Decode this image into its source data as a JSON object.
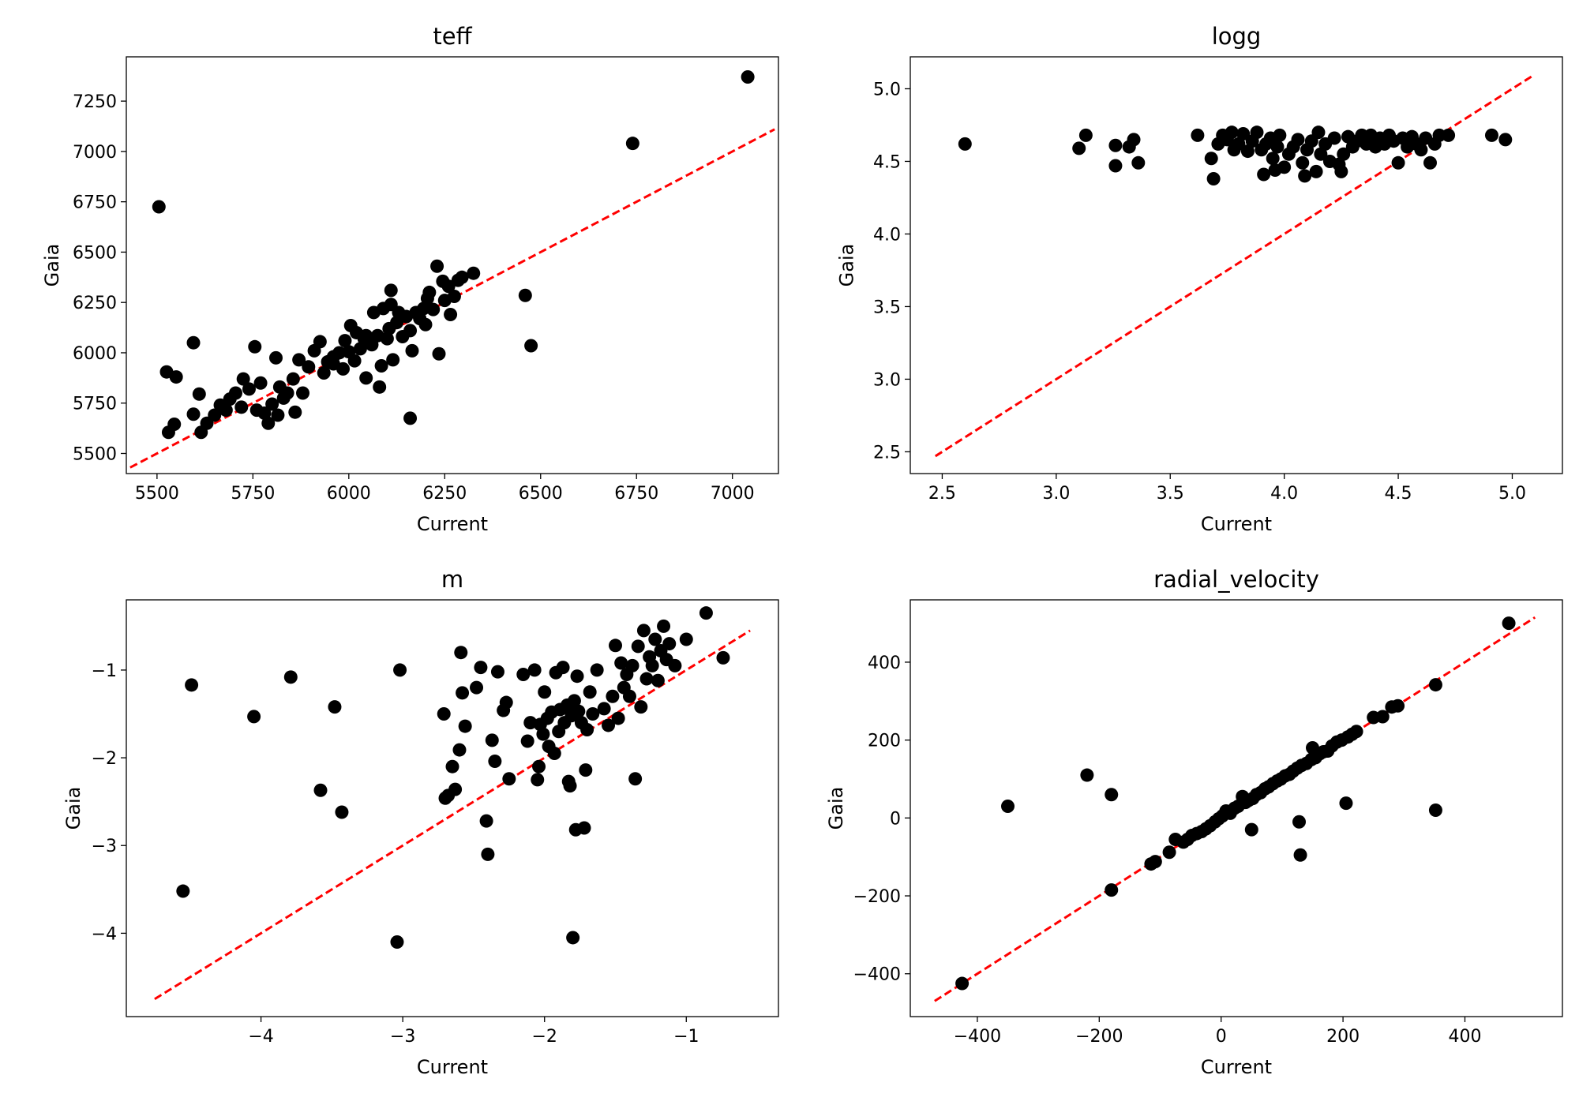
{
  "chart_data": [
    {
      "type": "scatter",
      "title": "teff",
      "xlabel": "Current",
      "ylabel": "Gaia",
      "xlim": [
        5420,
        7120
      ],
      "ylim": [
        5400,
        7470
      ],
      "xticks": [
        5500,
        5750,
        6000,
        6250,
        6500,
        6750,
        7000
      ],
      "yticks": [
        5500,
        5750,
        6000,
        6250,
        6500,
        6750,
        7000,
        7250
      ],
      "tick_labels_x": [
        "5500",
        "5750",
        "6000",
        "6250",
        "6500",
        "6750",
        "7000"
      ],
      "tick_labels_y": [
        "5500",
        "5750",
        "6000",
        "6250",
        "6500",
        "6750",
        "7000",
        "7250"
      ],
      "reference_line": {
        "style": "dashed",
        "color": "#ff0000",
        "from": [
          5430,
          5430
        ],
        "to": [
          7110,
          7110
        ]
      },
      "marker_color": "#000000",
      "grid": false,
      "points": [
        [
          7040,
          7370
        ],
        [
          6740,
          7040
        ],
        [
          5505,
          6725
        ],
        [
          6460,
          6285
        ],
        [
          6475,
          6035
        ],
        [
          6160,
          5675
        ],
        [
          5595,
          6050
        ],
        [
          5525,
          5905
        ],
        [
          5550,
          5880
        ],
        [
          5610,
          5795
        ],
        [
          5530,
          5605
        ],
        [
          5545,
          5645
        ],
        [
          5595,
          5695
        ],
        [
          5615,
          5605
        ],
        [
          5630,
          5650
        ],
        [
          5650,
          5690
        ],
        [
          5665,
          5740
        ],
        [
          5680,
          5715
        ],
        [
          5690,
          5770
        ],
        [
          5705,
          5800
        ],
        [
          5720,
          5730
        ],
        [
          5725,
          5870
        ],
        [
          5740,
          5820
        ],
        [
          5755,
          6030
        ],
        [
          5760,
          5715
        ],
        [
          5770,
          5850
        ],
        [
          5780,
          5700
        ],
        [
          5790,
          5650
        ],
        [
          5800,
          5745
        ],
        [
          5810,
          5975
        ],
        [
          5815,
          5690
        ],
        [
          5820,
          5830
        ],
        [
          5840,
          5800
        ],
        [
          5855,
          5870
        ],
        [
          5860,
          5705
        ],
        [
          5870,
          5965
        ],
        [
          5880,
          5800
        ],
        [
          5895,
          5930
        ],
        [
          5910,
          6010
        ],
        [
          5925,
          6055
        ],
        [
          5935,
          5900
        ],
        [
          5945,
          5955
        ],
        [
          5960,
          5980
        ],
        [
          5975,
          6000
        ],
        [
          5985,
          5920
        ],
        [
          5990,
          6060
        ],
        [
          6000,
          6005
        ],
        [
          6005,
          6135
        ],
        [
          6015,
          5960
        ],
        [
          6020,
          6100
        ],
        [
          6030,
          6020
        ],
        [
          6040,
          6070
        ],
        [
          6045,
          5875
        ],
        [
          6060,
          6040
        ],
        [
          6065,
          6200
        ],
        [
          6075,
          6085
        ],
        [
          6080,
          5830
        ],
        [
          6085,
          5935
        ],
        [
          6090,
          6220
        ],
        [
          6100,
          6070
        ],
        [
          6105,
          6120
        ],
        [
          6110,
          6240
        ],
        [
          6115,
          5965
        ],
        [
          6125,
          6150
        ],
        [
          6130,
          6200
        ],
        [
          6140,
          6080
        ],
        [
          6150,
          6180
        ],
        [
          6160,
          6110
        ],
        [
          6165,
          6010
        ],
        [
          6175,
          6200
        ],
        [
          6185,
          6170
        ],
        [
          6195,
          6220
        ],
        [
          6200,
          6140
        ],
        [
          6205,
          6270
        ],
        [
          6210,
          6300
        ],
        [
          6220,
          6215
        ],
        [
          6230,
          6430
        ],
        [
          6235,
          5995
        ],
        [
          6245,
          6355
        ],
        [
          6250,
          6260
        ],
        [
          6260,
          6330
        ],
        [
          6265,
          6190
        ],
        [
          6275,
          6280
        ],
        [
          6285,
          6360
        ],
        [
          6295,
          6375
        ],
        [
          6325,
          6395
        ],
        [
          6110,
          6310
        ],
        [
          6045,
          6085
        ],
        [
          5960,
          5945
        ],
        [
          5830,
          5775
        ]
      ]
    },
    {
      "type": "scatter",
      "title": "logg",
      "xlabel": "Current",
      "ylabel": "Gaia",
      "xlim": [
        2.36,
        5.22
      ],
      "ylim": [
        2.35,
        5.22
      ],
      "xticks": [
        2.5,
        3.0,
        3.5,
        4.0,
        4.5,
        5.0
      ],
      "yticks": [
        2.5,
        3.0,
        3.5,
        4.0,
        4.5,
        5.0
      ],
      "tick_labels_x": [
        "2.5",
        "3.0",
        "3.5",
        "4.0",
        "4.5",
        "5.0"
      ],
      "tick_labels_y": [
        "2.5",
        "3.0",
        "3.5",
        "4.0",
        "4.5",
        "5.0"
      ],
      "reference_line": {
        "style": "dashed",
        "color": "#ff0000",
        "from": [
          2.47,
          2.47
        ],
        "to": [
          5.09,
          5.09
        ]
      },
      "marker_color": "#000000",
      "grid": false,
      "points": [
        [
          2.6,
          4.62
        ],
        [
          3.1,
          4.59
        ],
        [
          3.13,
          4.68
        ],
        [
          3.26,
          4.61
        ],
        [
          3.26,
          4.47
        ],
        [
          3.32,
          4.6
        ],
        [
          3.34,
          4.65
        ],
        [
          3.36,
          4.49
        ],
        [
          3.62,
          4.68
        ],
        [
          3.68,
          4.52
        ],
        [
          3.69,
          4.38
        ],
        [
          3.71,
          4.62
        ],
        [
          3.73,
          4.68
        ],
        [
          3.75,
          4.65
        ],
        [
          3.77,
          4.7
        ],
        [
          3.78,
          4.58
        ],
        [
          3.8,
          4.62
        ],
        [
          3.82,
          4.69
        ],
        [
          3.84,
          4.57
        ],
        [
          3.86,
          4.64
        ],
        [
          3.88,
          4.7
        ],
        [
          3.9,
          4.58
        ],
        [
          3.91,
          4.41
        ],
        [
          3.92,
          4.62
        ],
        [
          3.94,
          4.66
        ],
        [
          3.95,
          4.52
        ],
        [
          3.96,
          4.44
        ],
        [
          3.97,
          4.6
        ],
        [
          3.98,
          4.68
        ],
        [
          4.0,
          4.46
        ],
        [
          4.02,
          4.55
        ],
        [
          4.04,
          4.6
        ],
        [
          4.06,
          4.65
        ],
        [
          4.08,
          4.49
        ],
        [
          4.09,
          4.4
        ],
        [
          4.1,
          4.58
        ],
        [
          4.12,
          4.64
        ],
        [
          4.14,
          4.43
        ],
        [
          4.15,
          4.7
        ],
        [
          4.16,
          4.55
        ],
        [
          4.18,
          4.62
        ],
        [
          4.2,
          4.5
        ],
        [
          4.22,
          4.66
        ],
        [
          4.24,
          4.48
        ],
        [
          4.25,
          4.43
        ],
        [
          4.26,
          4.55
        ],
        [
          4.28,
          4.67
        ],
        [
          4.3,
          4.6
        ],
        [
          4.32,
          4.64
        ],
        [
          4.34,
          4.68
        ],
        [
          4.36,
          4.62
        ],
        [
          4.38,
          4.68
        ],
        [
          4.4,
          4.6
        ],
        [
          4.42,
          4.66
        ],
        [
          4.44,
          4.62
        ],
        [
          4.46,
          4.68
        ],
        [
          4.48,
          4.64
        ],
        [
          4.5,
          4.49
        ],
        [
          4.52,
          4.66
        ],
        [
          4.54,
          4.6
        ],
        [
          4.56,
          4.67
        ],
        [
          4.58,
          4.62
        ],
        [
          4.6,
          4.58
        ],
        [
          4.62,
          4.66
        ],
        [
          4.64,
          4.49
        ],
        [
          4.66,
          4.62
        ],
        [
          4.68,
          4.68
        ],
        [
          4.72,
          4.68
        ],
        [
          4.91,
          4.68
        ],
        [
          4.97,
          4.65
        ]
      ]
    },
    {
      "type": "scatter",
      "title": "m",
      "xlabel": "Current",
      "ylabel": "Gaia",
      "xlim": [
        -4.95,
        -0.35
      ],
      "ylim": [
        -4.95,
        -0.2
      ],
      "xticks": [
        -4,
        -3,
        -2,
        -1
      ],
      "yticks": [
        -4,
        -3,
        -2,
        -1
      ],
      "tick_labels_x": [
        "−4",
        "−3",
        "−2",
        "−1"
      ],
      "tick_labels_y": [
        "−4",
        "−3",
        "−2",
        "−1"
      ],
      "reference_line": {
        "style": "dashed",
        "color": "#ff0000",
        "from": [
          -4.75,
          -4.75
        ],
        "to": [
          -0.55,
          -0.55
        ]
      },
      "marker_color": "#000000",
      "grid": false,
      "points": [
        [
          -4.55,
          -3.52
        ],
        [
          -4.49,
          -1.17
        ],
        [
          -4.05,
          -1.53
        ],
        [
          -3.79,
          -1.08
        ],
        [
          -3.58,
          -2.37
        ],
        [
          -3.48,
          -1.42
        ],
        [
          -3.43,
          -2.62
        ],
        [
          -3.04,
          -4.1
        ],
        [
          -3.02,
          -1.0
        ],
        [
          -2.71,
          -1.5
        ],
        [
          -2.7,
          -2.46
        ],
        [
          -2.68,
          -2.43
        ],
        [
          -2.65,
          -2.1
        ],
        [
          -2.63,
          -2.36
        ],
        [
          -2.6,
          -1.91
        ],
        [
          -2.59,
          -0.8
        ],
        [
          -2.58,
          -1.26
        ],
        [
          -2.56,
          -1.64
        ],
        [
          -2.48,
          -1.2
        ],
        [
          -2.45,
          -0.97
        ],
        [
          -2.41,
          -2.72
        ],
        [
          -2.4,
          -3.1
        ],
        [
          -2.37,
          -1.8
        ],
        [
          -2.35,
          -2.04
        ],
        [
          -2.33,
          -1.02
        ],
        [
          -2.29,
          -1.46
        ],
        [
          -2.27,
          -1.37
        ],
        [
          -2.25,
          -2.24
        ],
        [
          -2.15,
          -1.05
        ],
        [
          -2.12,
          -1.81
        ],
        [
          -2.1,
          -1.6
        ],
        [
          -2.07,
          -1.0
        ],
        [
          -2.05,
          -2.25
        ],
        [
          -2.04,
          -2.1
        ],
        [
          -2.03,
          -1.62
        ],
        [
          -2.01,
          -1.73
        ],
        [
          -2.0,
          -1.25
        ],
        [
          -1.98,
          -1.55
        ],
        [
          -1.97,
          -1.87
        ],
        [
          -1.95,
          -1.48
        ],
        [
          -1.93,
          -1.95
        ],
        [
          -1.92,
          -1.03
        ],
        [
          -1.9,
          -1.7
        ],
        [
          -1.89,
          -1.45
        ],
        [
          -1.87,
          -0.97
        ],
        [
          -1.86,
          -1.6
        ],
        [
          -1.84,
          -1.4
        ],
        [
          -1.83,
          -2.27
        ],
        [
          -1.82,
          -2.32
        ],
        [
          -1.81,
          -1.52
        ],
        [
          -1.8,
          -4.05
        ],
        [
          -1.79,
          -1.35
        ],
        [
          -1.78,
          -2.82
        ],
        [
          -1.77,
          -1.07
        ],
        [
          -1.76,
          -1.47
        ],
        [
          -1.74,
          -1.6
        ],
        [
          -1.72,
          -2.8
        ],
        [
          -1.71,
          -2.14
        ],
        [
          -1.7,
          -1.68
        ],
        [
          -1.68,
          -1.25
        ],
        [
          -1.66,
          -1.5
        ],
        [
          -1.63,
          -1.0
        ],
        [
          -1.58,
          -1.44
        ],
        [
          -1.55,
          -1.63
        ],
        [
          -1.52,
          -1.3
        ],
        [
          -1.5,
          -0.72
        ],
        [
          -1.48,
          -1.55
        ],
        [
          -1.46,
          -0.92
        ],
        [
          -1.44,
          -1.2
        ],
        [
          -1.42,
          -1.05
        ],
        [
          -1.4,
          -1.3
        ],
        [
          -1.38,
          -0.95
        ],
        [
          -1.36,
          -2.24
        ],
        [
          -1.34,
          -0.73
        ],
        [
          -1.32,
          -1.42
        ],
        [
          -1.3,
          -0.55
        ],
        [
          -1.28,
          -1.1
        ],
        [
          -1.26,
          -0.85
        ],
        [
          -1.24,
          -0.95
        ],
        [
          -1.22,
          -0.65
        ],
        [
          -1.2,
          -1.12
        ],
        [
          -1.18,
          -0.78
        ],
        [
          -1.16,
          -0.5
        ],
        [
          -1.14,
          -0.88
        ],
        [
          -1.12,
          -0.7
        ],
        [
          -1.08,
          -0.95
        ],
        [
          -1.0,
          -0.65
        ],
        [
          -0.86,
          -0.35
        ],
        [
          -0.74,
          -0.86
        ]
      ]
    },
    {
      "type": "scatter",
      "title": "radial_velocity",
      "xlabel": "Current",
      "ylabel": "Gaia",
      "xlim": [
        -510,
        560
      ],
      "ylim": [
        -510,
        560
      ],
      "xticks": [
        -400,
        -200,
        0,
        200,
        400
      ],
      "yticks": [
        -400,
        -200,
        0,
        200,
        400
      ],
      "tick_labels_x": [
        "−400",
        "−200",
        "0",
        "200",
        "400"
      ],
      "tick_labels_y": [
        "−400",
        "−200",
        "0",
        "200",
        "400"
      ],
      "reference_line": {
        "style": "dashed",
        "color": "#ff0000",
        "from": [
          -470,
          -470
        ],
        "to": [
          515,
          515
        ]
      },
      "marker_color": "#000000",
      "grid": false,
      "points": [
        [
          -425,
          -425
        ],
        [
          -350,
          30
        ],
        [
          -220,
          110
        ],
        [
          -180,
          60
        ],
        [
          -180,
          -185
        ],
        [
          -115,
          -118
        ],
        [
          -108,
          -112
        ],
        [
          -85,
          -88
        ],
        [
          -75,
          -55
        ],
        [
          -62,
          -62
        ],
        [
          -55,
          -55
        ],
        [
          -48,
          -45
        ],
        [
          -40,
          -40
        ],
        [
          -32,
          -35
        ],
        [
          -25,
          -28
        ],
        [
          -18,
          -20
        ],
        [
          -10,
          -10
        ],
        [
          -4,
          -2
        ],
        [
          2,
          5
        ],
        [
          8,
          18
        ],
        [
          15,
          12
        ],
        [
          22,
          25
        ],
        [
          28,
          30
        ],
        [
          35,
          55
        ],
        [
          40,
          40
        ],
        [
          45,
          45
        ],
        [
          50,
          -30
        ],
        [
          52,
          50
        ],
        [
          58,
          60
        ],
        [
          65,
          65
        ],
        [
          72,
          75
        ],
        [
          78,
          80
        ],
        [
          85,
          88
        ],
        [
          92,
          95
        ],
        [
          98,
          100
        ],
        [
          105,
          108
        ],
        [
          112,
          112
        ],
        [
          118,
          120
        ],
        [
          125,
          128
        ],
        [
          128,
          -10
        ],
        [
          130,
          -95
        ],
        [
          132,
          135
        ],
        [
          140,
          140
        ],
        [
          148,
          150
        ],
        [
          150,
          180
        ],
        [
          155,
          155
        ],
        [
          162,
          165
        ],
        [
          168,
          170
        ],
        [
          175,
          172
        ],
        [
          182,
          185
        ],
        [
          190,
          195
        ],
        [
          198,
          200
        ],
        [
          205,
          38
        ],
        [
          208,
          208
        ],
        [
          215,
          215
        ],
        [
          222,
          222
        ],
        [
          250,
          258
        ],
        [
          265,
          260
        ],
        [
          280,
          285
        ],
        [
          290,
          288
        ],
        [
          352,
          20
        ],
        [
          352,
          342
        ],
        [
          472,
          500
        ]
      ]
    }
  ]
}
